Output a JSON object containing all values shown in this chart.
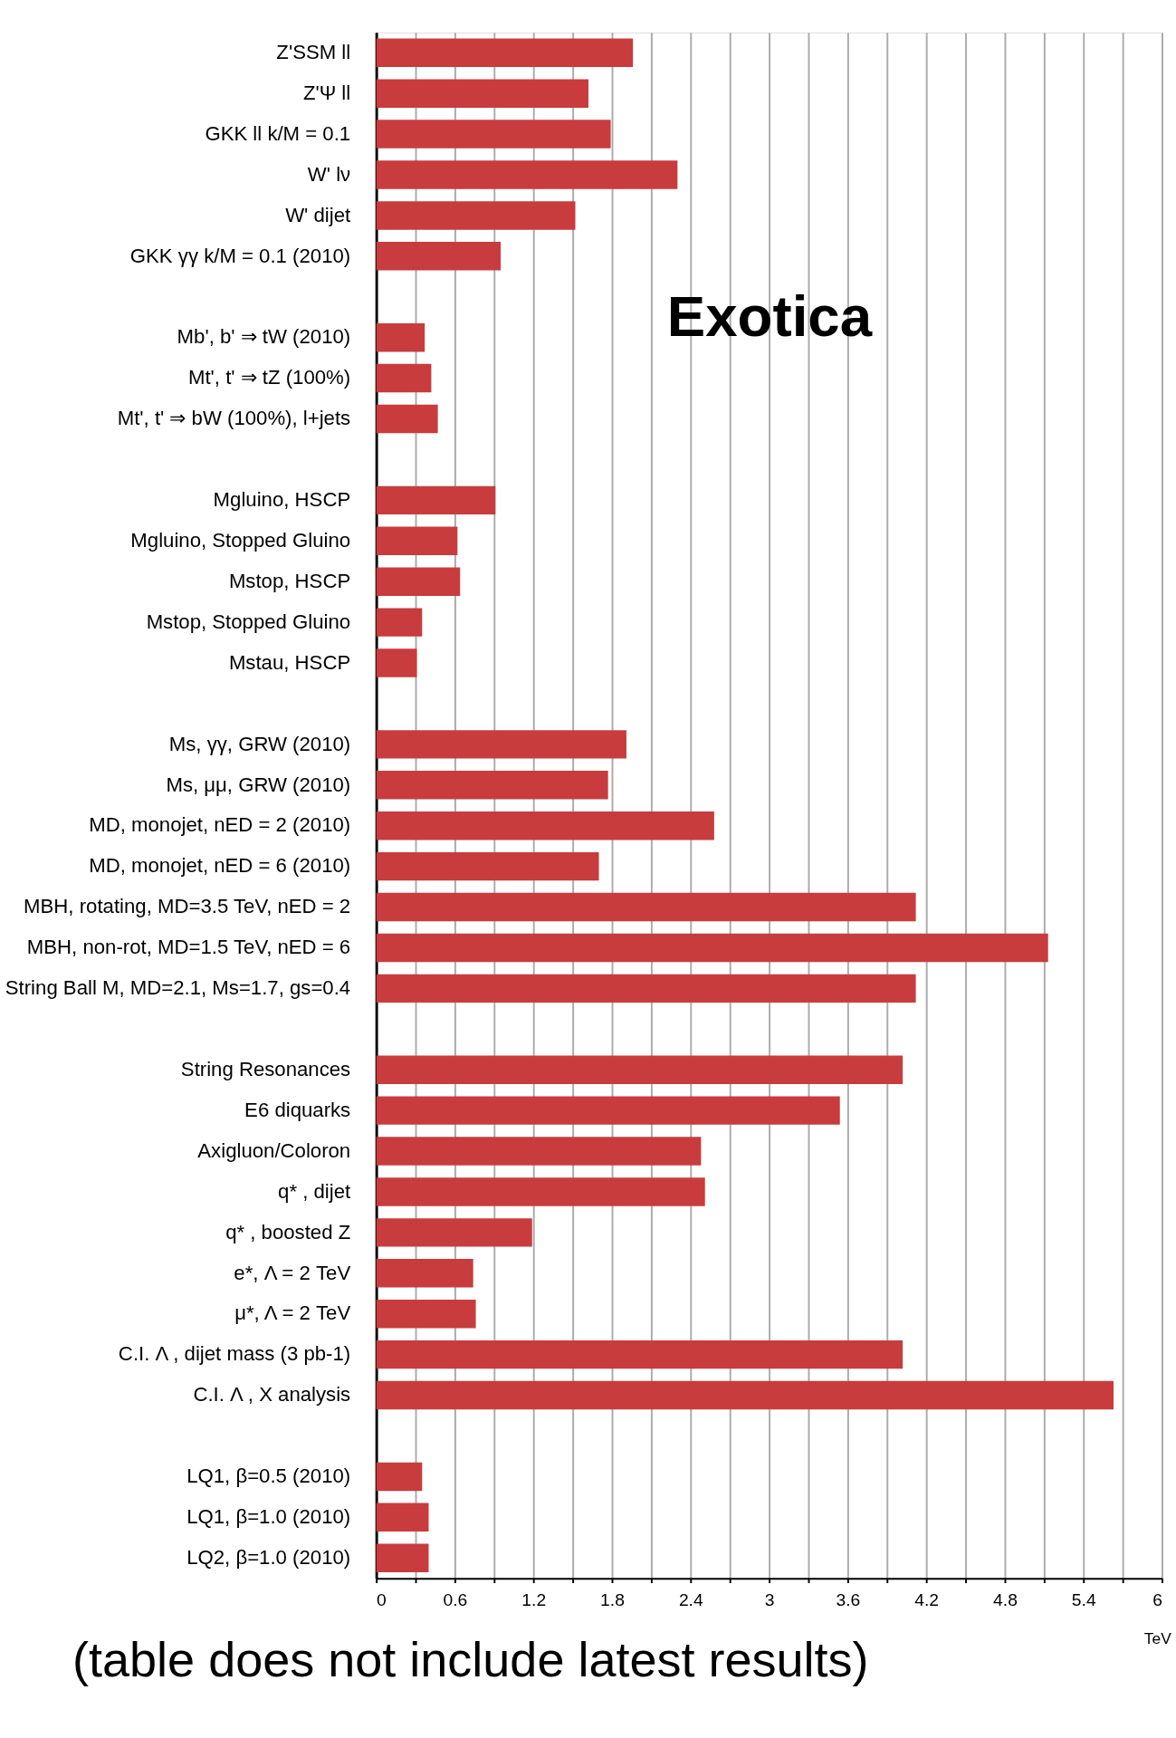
{
  "chart_data": {
    "type": "bar",
    "orientation": "horizontal",
    "categories": [
      "Z'SSM ll",
      "Z'Ψ ll",
      "GKK ll k/M = 0.1",
      "W' lν",
      "W' dijet",
      "GKK γγ k/M = 0.1 (2010)",
      null,
      "Mb', b' ⇒ tW (2010)",
      "Mt', t' ⇒ tZ (100%)",
      "Mt', t' ⇒ bW (100%), l+jets",
      null,
      "Mgluino, HSCP",
      "Mgluino, Stopped Gluino",
      "Mstop, HSCP",
      "Mstop, Stopped Gluino",
      "Mstau, HSCP",
      null,
      "Ms, γγ, GRW (2010)",
      "Ms, μμ, GRW (2010)",
      "MD, monojet, nED = 2 (2010)",
      "MD, monojet, nED = 6 (2010)",
      "MBH, rotating, MD=3.5 TeV, nED = 2",
      "MBH, non-rot, MD=1.5 TeV, nED = 6",
      "String Ball M, MD=2.1, Ms=1.7, gs=0.4",
      null,
      "String Resonances",
      "E6 diquarks",
      "Axigluon/Coloron",
      "q* , dijet",
      "q* , boosted Z",
      "e*, Λ = 2 TeV",
      "μ*, Λ = 2 TeV",
      "C.I. Λ , dijet mass (3 pb-1)",
      "C.I. Λ , X analysis",
      null,
      "LQ1, β=0.5 (2010)",
      "LQ1, β=1.0 (2010)",
      "LQ2, β=1.0 (2010)"
    ],
    "values": [
      1.96,
      1.62,
      1.79,
      2.3,
      1.52,
      0.95,
      null,
      0.37,
      0.42,
      0.47,
      null,
      0.91,
      0.62,
      0.64,
      0.35,
      0.31,
      null,
      1.91,
      1.77,
      2.58,
      1.7,
      4.12,
      5.13,
      4.12,
      null,
      4.02,
      3.54,
      2.48,
      2.51,
      1.19,
      0.74,
      0.76,
      4.02,
      5.63,
      null,
      0.35,
      0.4,
      0.4
    ],
    "color": "#c83c3e",
    "xlim": [
      0,
      6
    ],
    "xticks": [
      0,
      {
        "value": 0.3,
        "label": null
      },
      0.6,
      {
        "value": 0.9,
        "label": null
      },
      1.2,
      {
        "value": 1.5,
        "label": null
      },
      1.8,
      {
        "value": 2.1,
        "label": null
      },
      2.4,
      {
        "value": 2.7,
        "label": null
      },
      3,
      {
        "value": 3.3,
        "label": null
      },
      3.6,
      {
        "value": 3.9,
        "label": null
      },
      4.2,
      {
        "value": 4.5,
        "label": null
      },
      4.8,
      {
        "value": 5.1,
        "label": null
      },
      5.4,
      {
        "value": 5.7,
        "label": null
      },
      6
    ],
    "xlabel": "TeV",
    "grid": "x",
    "annotations": [
      "Exotica",
      "(table does not include latest results)"
    ]
  }
}
